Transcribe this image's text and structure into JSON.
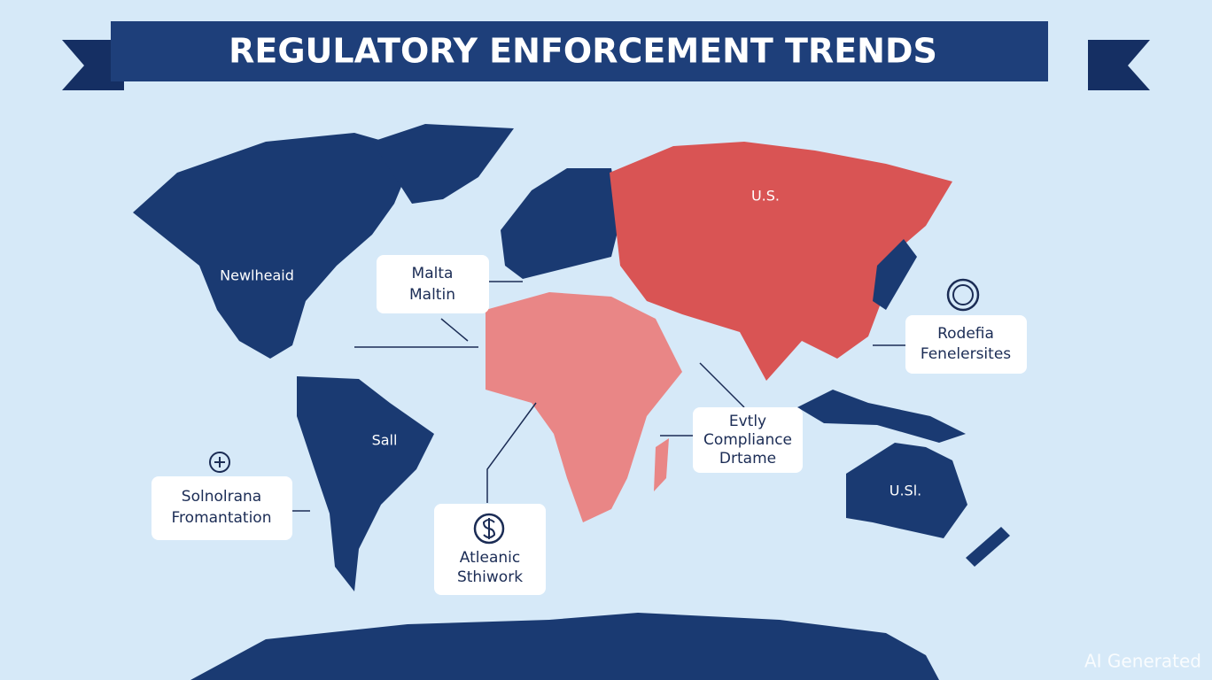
{
  "header": {
    "title": "REGULATORY ENFORCEMENT TRENDS"
  },
  "map_labels": [
    "U.S.",
    "Newlheaid",
    "Sall",
    "U.Sl."
  ],
  "callouts": [
    {
      "lines": [
        "Malta",
        "Maltin"
      ]
    },
    {
      "lines": [
        "Rodefia",
        "Fenelersites"
      ]
    },
    {
      "lines": [
        "Evtly",
        "Compliance",
        "Drtame"
      ]
    },
    {
      "lines": [
        "Solnolrana",
        "Fromantation"
      ]
    },
    {
      "lines": [
        "Atleanic",
        "Sthiwork"
      ]
    }
  ],
  "watermark": "AI Generated"
}
